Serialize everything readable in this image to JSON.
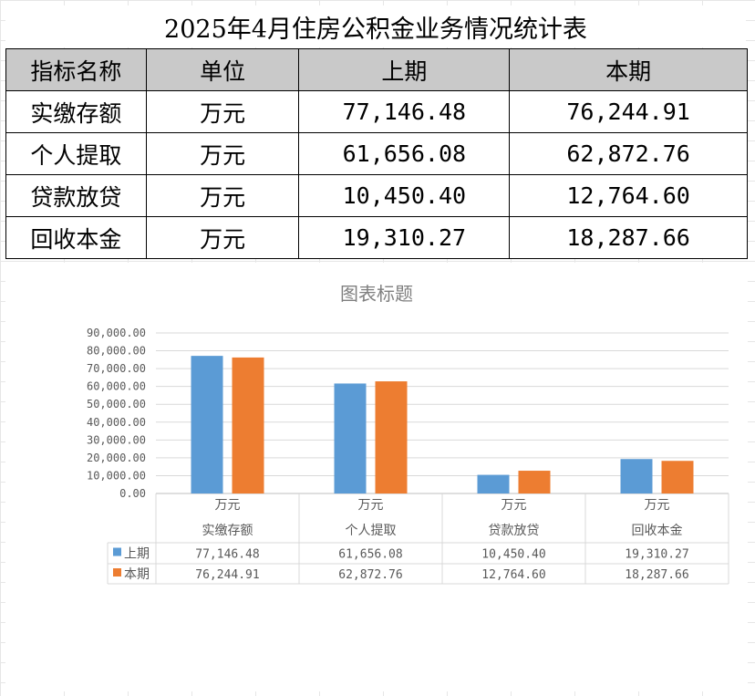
{
  "table": {
    "title": "2025年4月住房公积金业务情况统计表",
    "headers": [
      "指标名称",
      "单位",
      "上期",
      "本期"
    ],
    "rows": [
      {
        "name": "实缴存额",
        "unit": "万元",
        "prev": "77,146.48",
        "curr": "76,244.91"
      },
      {
        "name": "个人提取",
        "unit": "万元",
        "prev": "61,656.08",
        "curr": "62,872.76"
      },
      {
        "name": "贷款放贷",
        "unit": "万元",
        "prev": "10,450.40",
        "curr": "12,764.60"
      },
      {
        "name": "回收本金",
        "unit": "万元",
        "prev": "19,310.27",
        "curr": "18,287.66"
      }
    ]
  },
  "chart_data": {
    "type": "bar",
    "title": "图表标题",
    "categories": [
      "实缴存额",
      "个人提取",
      "贷款放贷",
      "回收本金"
    ],
    "category_units": [
      "万元",
      "万元",
      "万元",
      "万元"
    ],
    "series": [
      {
        "name": "上期",
        "color": "#5b9bd5",
        "values": [
          77146.48,
          61656.08,
          10450.4,
          19310.27
        ],
        "labels": [
          "77,146.48",
          "61,656.08",
          "10,450.40",
          "19,310.27"
        ]
      },
      {
        "name": "本期",
        "color": "#ed7d31",
        "values": [
          76244.91,
          62872.76,
          12764.6,
          18287.66
        ],
        "labels": [
          "76,244.91",
          "62,872.76",
          "12,764.60",
          "18,287.66"
        ]
      }
    ],
    "ylim": [
      0,
      90000
    ],
    "yticks": [
      "0.00",
      "10,000.00",
      "20,000.00",
      "30,000.00",
      "40,000.00",
      "50,000.00",
      "60,000.00",
      "70,000.00",
      "80,000.00",
      "90,000.00"
    ],
    "grid": true,
    "legend": "data-table"
  }
}
